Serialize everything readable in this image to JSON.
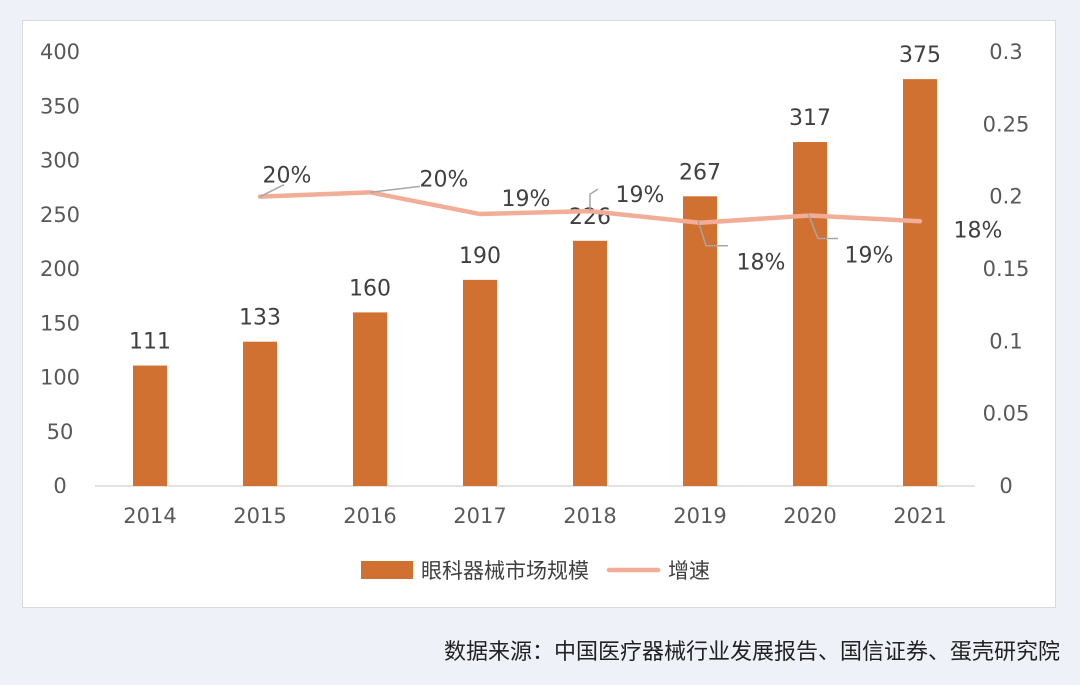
{
  "chart_data": {
    "type": "bar",
    "categories": [
      "2014",
      "2015",
      "2016",
      "2017",
      "2018",
      "2019",
      "2020",
      "2021"
    ],
    "series": [
      {
        "name": "眼科器械市场规模",
        "type": "bar",
        "axis": "left",
        "color": "#d07132",
        "values": [
          111,
          133,
          160,
          190,
          226,
          267,
          317,
          375
        ],
        "labels": [
          "111",
          "133",
          "160",
          "190",
          "226",
          "267",
          "317",
          "375"
        ]
      },
      {
        "name": "增速",
        "type": "line",
        "axis": "right",
        "color": "#f2ad97",
        "values": [
          null,
          0.2,
          0.203,
          0.188,
          0.19,
          0.182,
          0.187,
          0.183
        ],
        "labels": [
          null,
          "20%",
          "20%",
          "19%",
          "19%",
          "18%",
          "19%",
          "18%"
        ]
      }
    ],
    "y_left": {
      "lim": [
        0,
        400
      ],
      "ticks": [
        "0",
        "50",
        "100",
        "150",
        "200",
        "250",
        "300",
        "350",
        "400"
      ]
    },
    "y_right": {
      "lim": [
        0,
        0.3
      ],
      "ticks": [
        "0",
        "0.05",
        "0.1",
        "0.15",
        "0.2",
        "0.25",
        "0.3"
      ]
    },
    "grid": false,
    "legend_position": "bottom"
  },
  "source_text": "数据来源：中国医疗器械行业发展报告、国信证券、蛋壳研究院"
}
